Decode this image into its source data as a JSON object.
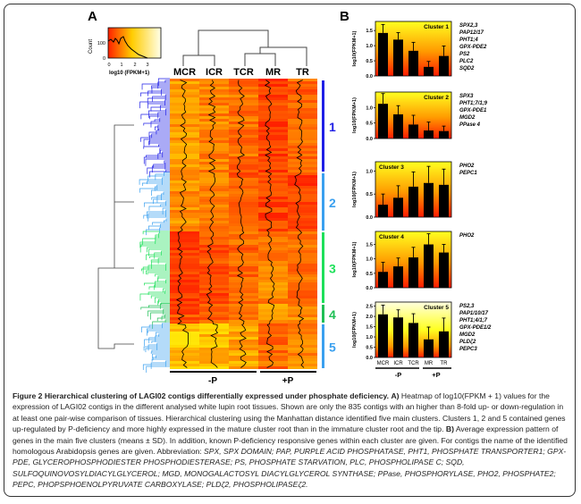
{
  "panel_a": {
    "label": "A",
    "legend": {
      "ylabel": "Count",
      "yticks": [
        "0",
        "100"
      ],
      "xticks": [
        "0",
        "1",
        "2",
        "3"
      ],
      "xlabel": "log10 (FPKM+1)"
    },
    "columns": [
      "MCR",
      "ICR",
      "TCR",
      "MR",
      "TR"
    ],
    "clusters": [
      {
        "label": "1",
        "color": "#1f1fe6"
      },
      {
        "label": "2",
        "color": "#3aa0ef"
      },
      {
        "label": "3",
        "color": "#1ee05a"
      },
      {
        "label": "4",
        "color": "#1fbf55"
      },
      {
        "label": "5",
        "color": "#3aa0ef"
      }
    ],
    "groups": [
      "-P",
      "+P"
    ],
    "colors": {
      "low": "#ff2000",
      "mid": "#ff8c00",
      "high": "#ffff30"
    }
  },
  "panel_b": {
    "label": "B"
  },
  "chart_data": [
    {
      "type": "bar",
      "title": "Cluster 1",
      "ylabel": "log10(FPKM+1)",
      "categories": [
        "MCR",
        "ICR",
        "TCR",
        "MR",
        "TR"
      ],
      "values": [
        1.42,
        1.2,
        0.83,
        0.3,
        0.66
      ],
      "errors": [
        0.28,
        0.23,
        0.28,
        0.18,
        0.33
      ],
      "ylim": [
        0,
        1.8
      ],
      "yticks": [
        "0.0",
        "0.5",
        "1.0",
        "1.5"
      ],
      "genes": [
        "SPX2,3",
        "PAP12/17",
        "PHT1;4",
        "GPX-PDE2",
        "PS2",
        "PLC2",
        "SQD2"
      ]
    },
    {
      "type": "bar",
      "title": "Cluster 2",
      "ylabel": "log10(FPKM+1)",
      "categories": [
        "MCR",
        "ICR",
        "TCR",
        "MR",
        "TR"
      ],
      "values": [
        1.12,
        0.78,
        0.45,
        0.26,
        0.24
      ],
      "errors": [
        0.33,
        0.28,
        0.3,
        0.27,
        0.16
      ],
      "ylim": [
        0,
        1.5
      ],
      "yticks": [
        "0.0",
        "0.5",
        "1.0"
      ],
      "genes": [
        "SPX3",
        "PHT1;7/1;9",
        "GPX-PDE1",
        "MGD2",
        "PPase 4"
      ]
    },
    {
      "type": "bar",
      "title": "Cluster 3",
      "ylabel": "log10(FPKM+1)",
      "categories": [
        "MCR",
        "ICR",
        "TCR",
        "MR",
        "TR"
      ],
      "values": [
        0.27,
        0.42,
        0.66,
        0.74,
        0.7
      ],
      "errors": [
        0.23,
        0.26,
        0.32,
        0.36,
        0.34
      ],
      "ylim": [
        0,
        1.2
      ],
      "yticks": [
        "0.0",
        "0.5",
        "1.0"
      ],
      "genes": [
        "PHO2",
        "PEPC1"
      ]
    },
    {
      "type": "bar",
      "title": "Cluster 4",
      "ylabel": "log10(FPKM+1)",
      "categories": [
        "MCR",
        "ICR",
        "TCR",
        "MR",
        "TR"
      ],
      "values": [
        0.55,
        0.74,
        1.05,
        1.5,
        1.22
      ],
      "errors": [
        0.33,
        0.29,
        0.35,
        0.37,
        0.28
      ],
      "ylim": [
        0,
        1.95
      ],
      "yticks": [
        "0.0",
        "0.5",
        "1.0",
        "1.5"
      ],
      "genes": [
        "PHO2"
      ]
    },
    {
      "type": "bar",
      "title": "Cluster 5",
      "ylabel": "log10(FPKM+1)",
      "categories": [
        "MCR",
        "ICR",
        "TCR",
        "MR",
        "TR"
      ],
      "values": [
        2.1,
        1.95,
        1.68,
        0.88,
        1.27
      ],
      "errors": [
        0.45,
        0.37,
        0.45,
        0.6,
        0.65
      ],
      "ylim": [
        0,
        2.7
      ],
      "yticks": [
        "0.0",
        "0.5",
        "1.0",
        "1.5",
        "2.0",
        "2.5"
      ],
      "genes": [
        "PS2,3",
        "PAP1/10/17",
        "PHT1;4/1;7",
        "GPX-PDE1/2",
        "MGD2",
        "PLDζ2",
        "PEPC3"
      ],
      "groups": [
        "-P",
        "+P"
      ]
    }
  ],
  "caption": {
    "title": "Figure 2 Hierarchical clustering of LAGI02 contigs differentially expressed under phosphate deficiency.",
    "a_label": "A)",
    "a_text": "Heatmap of log10(FPKM + 1) values for the expression of LAGI02 contigs in the different analysed white lupin root tissues. Shown are only the 835 contigs with an higher than 8-fold up- or down-regulation in at least one pair-wise comparison of tissues. Hierarchical clustering using the Manhattan distance identified five main clusters. Clusters 1, 2 and 5 contained genes up-regulated by P-deficiency and more highly expressed in the mature cluster root than in the immature cluster root and the tip.",
    "b_label": "B)",
    "b_text": "Average expression pattern of genes in the main five clusters (means ± SD). In addition, known P-deficiency responsive genes within each cluster are given. For contigs the name of the identified homologous Arabidopsis genes are given. Abbreviation:",
    "abbrev": "SPX, SPX DOMAIN; PAP, PURPLE ACID PHOSPHATASE, PHT1, PHOSPHATE TRANSPORTER1; GPX-PDE, GLYCEROPHOSPHODIESTER PHOSPHODIESTERASE; PS, PHOSPHATE STARVATION, PLC, PHOSPHOLIPASE C; SQD, SULFOQUINOVOSYLDIACYLGLYCEROL; MGD, MONOGALACTOSYL DIACYLGLYCEROL SYNTHASE; PPase, PHOSPHORYLASE, PHO2, PHOSPHATE2; PEPC, PHOPSPHOENOLPYRUVATE CARBOXYLASE; PLDζ2, PHOSPHOLIPASEζ2."
  }
}
